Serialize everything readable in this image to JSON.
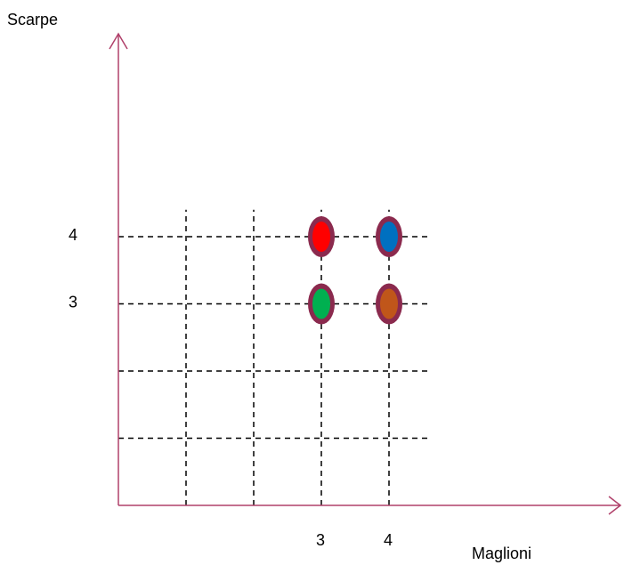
{
  "chart_data": {
    "type": "scatter",
    "xlabel": "Maglioni",
    "ylabel": "Scarpe",
    "x_ticks": [
      {
        "value": 3,
        "label": "3"
      },
      {
        "value": 4,
        "label": "4"
      }
    ],
    "y_ticks": [
      {
        "value": 3,
        "label": "3"
      },
      {
        "value": 4,
        "label": "4"
      }
    ],
    "xlim": [
      0,
      4.6
    ],
    "ylim": [
      0,
      4.4
    ],
    "grid": {
      "style": "dashed",
      "x_lines": [
        1,
        2,
        3,
        4
      ],
      "y_lines": [
        1,
        2,
        3,
        4
      ],
      "x_extent": [
        0,
        4.6
      ],
      "y_extent": [
        0,
        4.4
      ]
    },
    "points": [
      {
        "x": 3,
        "y": 4,
        "color": "#ff0000"
      },
      {
        "x": 4,
        "y": 4,
        "color": "#0070c0"
      },
      {
        "x": 3,
        "y": 3,
        "color": "#00b050"
      },
      {
        "x": 4,
        "y": 3,
        "color": "#c0561a"
      }
    ],
    "colors": {
      "axis": "#b0406a",
      "point_border": "#8b2a4e",
      "grid": "#000000",
      "text": "#000000"
    }
  }
}
